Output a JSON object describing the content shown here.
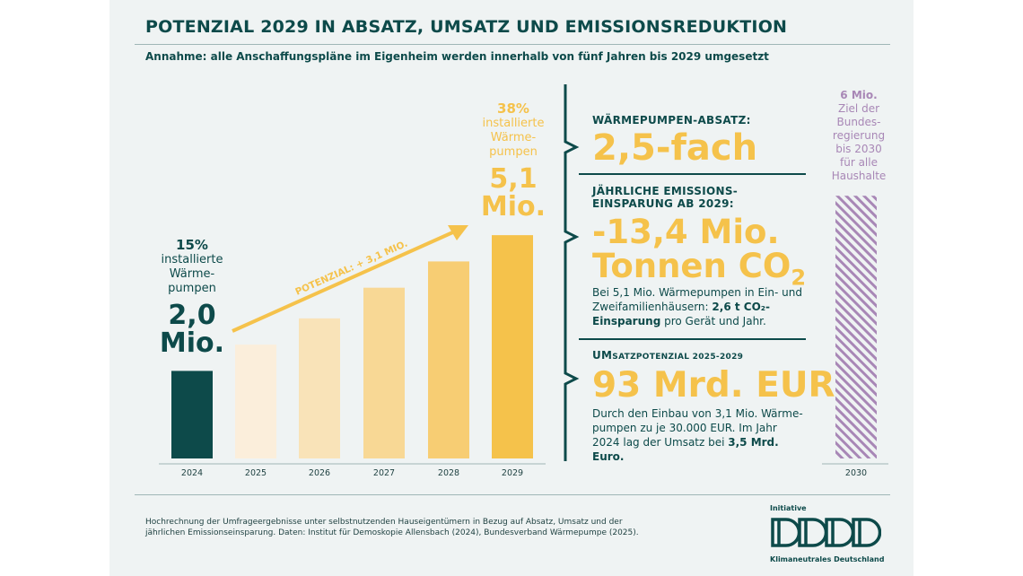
{
  "header": {
    "title": "POTENZIAL 2029 IN ABSATZ, UMSATZ UND EMISSIONSREDUKTION",
    "subtitle": "Annahme: alle Anschaffungspläne im Eigenheim werden innerhalb von fünf Jahren bis 2029 umgesetzt"
  },
  "chart_data": {
    "type": "bar",
    "categories": [
      "2024",
      "2025",
      "2026",
      "2027",
      "2028",
      "2029",
      "2030"
    ],
    "values_mio": [
      2.0,
      2.6,
      3.2,
      3.9,
      4.5,
      5.1,
      6.0
    ],
    "bar_colors": [
      "#0d4a4a",
      "#fbeedb",
      "#f9e3b8",
      "#f8d895",
      "#f7cd73",
      "#f5c24b",
      "hatched-purple"
    ],
    "target_bar_color": "#a887b6",
    "arrow_label": "POTENZIAL: + 3,1 MIO.",
    "annotations": {
      "start": {
        "pct": "15%",
        "desc_lines": [
          "installierte",
          "Wärme-",
          "pumpen"
        ],
        "value_lines": [
          "2,0",
          "Mio."
        ]
      },
      "end": {
        "pct": "38%",
        "desc_lines": [
          "installierte",
          "Wärme-",
          "pumpen"
        ],
        "value_lines": [
          "5,1",
          "Mio."
        ]
      },
      "target": {
        "value": "6 Mio.",
        "desc_lines": [
          "Ziel der",
          "Bundes-",
          "regierung",
          "bis 2030",
          "für alle",
          "Haushalte"
        ]
      }
    }
  },
  "stats": {
    "sales": {
      "heading": "WÄRMEPUMPEN-ABSATZ:",
      "value": "2,5-fach"
    },
    "emissions": {
      "heading_lines": [
        "JÄHRLICHE EMISSIONS-",
        "EINSPARUNG AB 2029:"
      ],
      "value_line1": "-13,4 Mio.",
      "value_line2": "Tonnen CO",
      "value_sub": "2",
      "body_pre": "Bei 5,1 Mio. Wärmepumpen in Ein- und Zweifamilienhäusern: ",
      "body_bold": "2,6 t CO₂-Einsparung",
      "body_post": " pro Gerät und Jahr."
    },
    "revenue": {
      "heading_big": "UM",
      "heading_small": "SATZPOTENZIAL 2025-2029",
      "value": "93 Mrd. EUR",
      "body_pre": "Durch den Einbau von 3,1 Mio. Wärme-pumpen zu je 30.000 EUR. Im Jahr 2024 lag der Umsatz bei ",
      "body_bold": "3,5 Mrd. Euro."
    }
  },
  "footer": {
    "note": "Hochrechnung der Umfrageergebnisse unter selbstnutzenden Hauseigentümern in Bezug auf Absatz, Umsatz und der jährlichen Emissionseinsparung. Daten: Institut für Demoskopie Allensbach (2024), Bundesverband Wärmepumpe (2025).",
    "logo_top": "Initiative",
    "logo_bottom": "Klimaneutrales Deutschland"
  }
}
